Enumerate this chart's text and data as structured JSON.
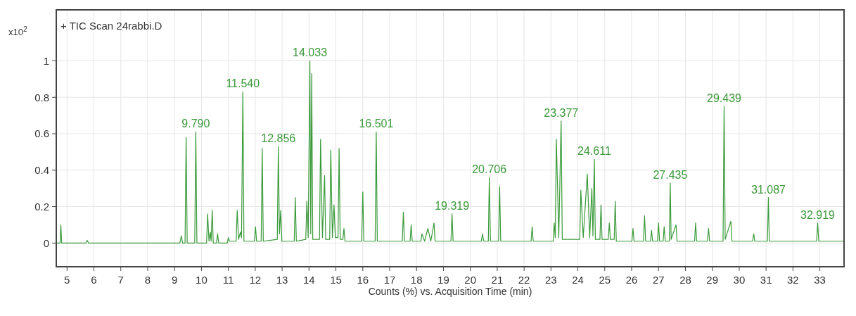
{
  "chart_data": {
    "type": "line",
    "title": "+ TIC Scan 24rabbi.D",
    "xlabel": "Counts (%) vs. Acquisition Time (min)",
    "ylabel": "x10$^{2}$",
    "xlim": [
      4.6,
      33.9
    ],
    "xticks": [
      5,
      6,
      7,
      8,
      9,
      10,
      11,
      12,
      13,
      14,
      15,
      16,
      17,
      18,
      19,
      20,
      21,
      22,
      23,
      24,
      25,
      26,
      27,
      28,
      29,
      30,
      31,
      32,
      33
    ],
    "ylim": [
      -0.13,
      1.28
    ],
    "yticks": [
      0,
      0.2,
      0.4,
      0.6,
      0.8,
      1
    ],
    "grid": true,
    "marker": "none",
    "line_style": "solid",
    "series": [
      {
        "color": "#3a9a3a",
        "x": [
          4.6,
          4.74,
          4.77,
          4.8,
          5.7,
          5.75,
          5.8,
          9.2,
          9.25,
          9.3,
          9.39,
          9.43,
          9.47,
          9.75,
          9.79,
          9.83,
          10.19,
          10.23,
          10.28,
          10.33,
          10.36,
          10.4,
          10.44,
          10.56,
          10.6,
          10.64,
          10.96,
          11.0,
          11.04,
          11.29,
          11.33,
          11.38,
          11.45,
          11.49,
          11.54,
          11.58,
          11.97,
          12.01,
          12.05,
          12.22,
          12.26,
          12.3,
          12.82,
          12.86,
          12.9,
          12.95,
          12.99,
          13.45,
          13.49,
          13.53,
          13.88,
          13.92,
          13.97,
          14.033,
          14.065,
          14.1,
          14.14,
          14.39,
          14.43,
          14.5,
          14.58,
          14.62,
          14.77,
          14.81,
          14.87,
          14.93,
          14.98,
          15.08,
          15.12,
          15.16,
          15.26,
          15.3,
          15.34,
          15.96,
          16.0,
          16.04,
          16.46,
          16.501,
          16.54,
          17.47,
          17.51,
          17.55,
          17.76,
          17.8,
          17.84,
          18.16,
          18.2,
          18.3,
          18.42,
          18.53,
          18.65,
          18.69,
          19.28,
          19.319,
          19.36,
          20.41,
          20.45,
          20.5,
          20.67,
          20.706,
          20.75,
          21.05,
          21.09,
          21.13,
          22.26,
          22.3,
          22.34,
          23.08,
          23.12,
          23.16,
          23.2,
          23.29,
          23.377,
          23.42,
          24.07,
          24.11,
          24.2,
          24.35,
          24.44,
          24.52,
          24.56,
          24.611,
          24.65,
          24.82,
          24.86,
          24.9,
          25.13,
          25.17,
          25.21,
          25.35,
          25.39,
          25.43,
          26.01,
          26.05,
          26.09,
          26.44,
          26.48,
          26.52,
          26.7,
          26.74,
          26.78,
          26.96,
          27.0,
          27.04,
          27.17,
          27.21,
          27.25,
          27.4,
          27.435,
          27.47,
          27.65,
          27.69,
          28.34,
          28.38,
          28.42,
          28.82,
          28.86,
          28.9,
          29.4,
          29.439,
          29.48,
          29.69,
          29.73,
          30.5,
          30.54,
          30.58,
          31.05,
          31.087,
          31.12,
          32.88,
          32.919,
          32.96,
          33.9
        ],
        "values": [
          0,
          0,
          0.1,
          0,
          0,
          0.015,
          0,
          0,
          0.04,
          0,
          0,
          0.58,
          0,
          0,
          0.61,
          0,
          0,
          0.16,
          0.01,
          0.06,
          0.01,
          0.18,
          0,
          0,
          0.05,
          0,
          0,
          0.03,
          0.01,
          0.01,
          0.18,
          0.02,
          0.06,
          0.03,
          0.83,
          0.01,
          0.01,
          0.09,
          0.01,
          0.01,
          0.52,
          0.01,
          0.02,
          0.53,
          0.05,
          0.18,
          0.01,
          0.01,
          0.25,
          0.01,
          0.02,
          0.23,
          0.03,
          1.0,
          0.05,
          0.93,
          0.02,
          0.02,
          0.57,
          0.03,
          0.37,
          0.02,
          0.02,
          0.51,
          0.03,
          0.21,
          0.03,
          0.03,
          0.52,
          0.02,
          0.02,
          0.08,
          0.01,
          0.01,
          0.28,
          0.01,
          0.01,
          0.61,
          0.01,
          0.01,
          0.17,
          0.01,
          0.01,
          0.1,
          0.01,
          0.01,
          0.05,
          0.01,
          0.08,
          0.01,
          0.11,
          0.01,
          0.01,
          0.16,
          0.01,
          0.01,
          0.05,
          0.01,
          0.01,
          0.36,
          0.01,
          0.01,
          0.31,
          0.01,
          0.01,
          0.09,
          0.01,
          0.01,
          0.11,
          0.03,
          0.57,
          0.03,
          0.67,
          0.02,
          0.02,
          0.29,
          0.03,
          0.38,
          0.03,
          0.3,
          0.04,
          0.46,
          0.02,
          0.02,
          0.21,
          0.02,
          0.02,
          0.11,
          0.02,
          0.02,
          0.23,
          0.01,
          0.01,
          0.08,
          0.01,
          0.01,
          0.15,
          0.01,
          0.01,
          0.07,
          0.01,
          0.01,
          0.11,
          0.01,
          0.01,
          0.09,
          0.01,
          0.01,
          0.33,
          0.02,
          0.1,
          0.01,
          0.01,
          0.11,
          0.01,
          0.01,
          0.08,
          0.01,
          0.01,
          0.75,
          0.02,
          0.12,
          0.01,
          0.01,
          0.05,
          0.01,
          0.01,
          0.25,
          0.01,
          0.01,
          0.11,
          0.01,
          0.01
        ]
      }
    ],
    "annotations": [
      {
        "text": "9.790",
        "x": 9.79,
        "y": 0.61
      },
      {
        "text": "11.540",
        "x": 11.54,
        "y": 0.83
      },
      {
        "text": "12.856",
        "x": 12.86,
        "y": 0.53
      },
      {
        "text": "14.033",
        "x": 14.033,
        "y": 1.0
      },
      {
        "text": "16.501",
        "x": 16.501,
        "y": 0.61
      },
      {
        "text": "19.319",
        "x": 19.319,
        "y": 0.16
      },
      {
        "text": "20.706",
        "x": 20.706,
        "y": 0.36
      },
      {
        "text": "23.377",
        "x": 23.377,
        "y": 0.67
      },
      {
        "text": "24.611",
        "x": 24.611,
        "y": 0.46
      },
      {
        "text": "27.435",
        "x": 27.435,
        "y": 0.33
      },
      {
        "text": "29.439",
        "x": 29.439,
        "y": 0.75
      },
      {
        "text": "31.087",
        "x": 31.087,
        "y": 0.25
      },
      {
        "text": "32.919",
        "x": 32.919,
        "y": 0.11
      }
    ]
  }
}
